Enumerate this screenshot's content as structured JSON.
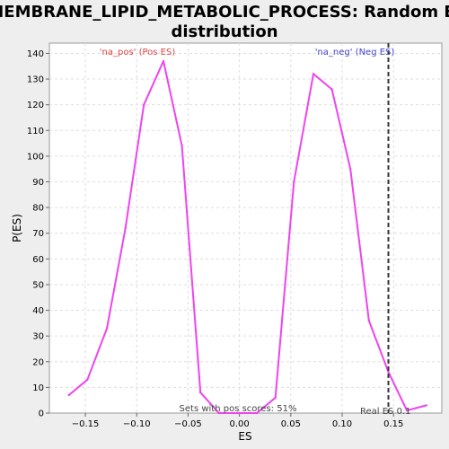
{
  "chart_data": {
    "type": "line",
    "title_line1": "MEMBRANE_LIPID_METABOLIC_PROCESS: Random ES",
    "title_line2": "distribution",
    "xlabel": "ES",
    "ylabel": "P(ES)",
    "xlim": [
      -0.185,
      0.197
    ],
    "ylim": [
      0,
      144
    ],
    "x_ticks": [
      -0.15,
      -0.1,
      -0.05,
      0.0,
      0.05,
      0.1,
      0.15
    ],
    "x_tick_labels": [
      "−0.15",
      "−0.10",
      "−0.05",
      "0.00",
      "0.05",
      "0.10",
      "0.15"
    ],
    "y_ticks": [
      0,
      10,
      20,
      30,
      40,
      50,
      60,
      70,
      80,
      90,
      100,
      110,
      120,
      130,
      140
    ],
    "grid": true,
    "series": [
      {
        "color": "#ee44ee",
        "x": [
          -0.166,
          -0.148,
          -0.129,
          -0.111,
          -0.093,
          -0.074,
          -0.056,
          -0.038,
          -0.02,
          -0.001,
          0.017,
          0.035,
          0.053,
          0.072,
          0.09,
          0.108,
          0.126,
          0.145,
          0.163,
          0.182
        ],
        "y": [
          7,
          13,
          33,
          72,
          120,
          137,
          104,
          8,
          0,
          0,
          0,
          6,
          90,
          132,
          126,
          95,
          36,
          16,
          1,
          3
        ]
      }
    ],
    "real_es": 0.145,
    "annotations": {
      "pos_label": "'na_pos' (Pos ES)",
      "neg_label": "'na_neg' (Neg ES)",
      "pos_scores": "Sets with pos scores: 51%",
      "real_es_label": "Real ES 0.1"
    },
    "colors": {
      "pos_label": "#dd4444",
      "neg_label": "#4444cc",
      "line": "#ee44ee",
      "grid": "#dddddd"
    }
  }
}
